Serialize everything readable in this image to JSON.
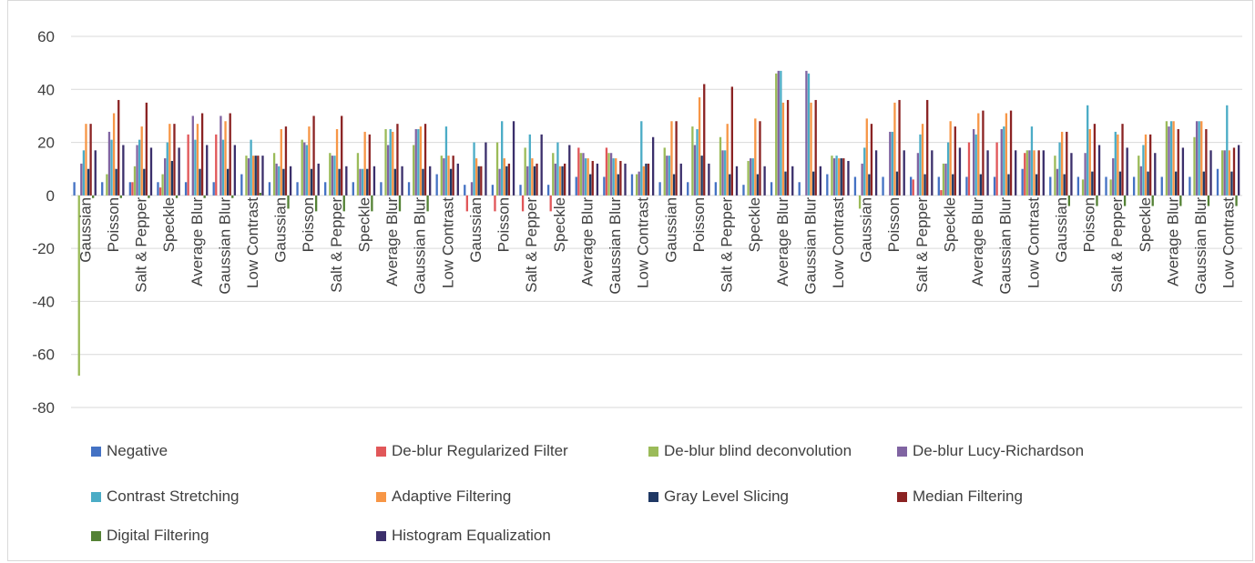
{
  "chart_data": {
    "type": "bar",
    "ylim": [
      -80,
      60
    ],
    "yticks": [
      60,
      40,
      20,
      0,
      -20,
      -40,
      -60,
      -80
    ],
    "grid": true,
    "legend_position": "bottom",
    "categories": [
      "Gaussian",
      "Poisson",
      "Salt & Pepper",
      "Speckle",
      "Average Blur",
      "Gaussian Blur",
      "Low Contrast",
      "Gaussian",
      "Poisson",
      "Salt & Pepper",
      "Speckle",
      "Average Blur",
      "Gaussian Blur",
      "Low Contrast",
      "Gaussian",
      "Poisson",
      "Salt & Pepper",
      "Speckle",
      "Average Blur",
      "Gaussian Blur",
      "Low Contrast",
      "Gaussian",
      "Poisson",
      "Salt & Pepper",
      "Speckle",
      "Average Blur",
      "Gaussian Blur",
      "Low Contrast",
      "Gaussian",
      "Poisson",
      "Salt & Pepper",
      "Speckle",
      "Average Blur",
      "Gaussian Blur",
      "Low Contrast",
      "Gaussian",
      "Poisson",
      "Salt & Pepper",
      "Speckle",
      "Average Blur",
      "Gaussian Blur",
      "Low Contrast"
    ],
    "series": [
      {
        "name": "Negative",
        "color": "#4472c4",
        "values": [
          5,
          5,
          5,
          5,
          5,
          5,
          8,
          5,
          5,
          5,
          5,
          5,
          5,
          8,
          4,
          4,
          4,
          4,
          7,
          7,
          8,
          5,
          5,
          5,
          4,
          5,
          5,
          8,
          7,
          7,
          7,
          7,
          7,
          7,
          10,
          7,
          7,
          7,
          7,
          7,
          7,
          10
        ]
      },
      {
        "name": "De-blur Regularized Filter",
        "color": "#e15759",
        "values": [
          0,
          0,
          5,
          3,
          23,
          23,
          0,
          0,
          0,
          0,
          0,
          0,
          0,
          0,
          -6,
          -6,
          -6,
          -6,
          18,
          18,
          0,
          0,
          0,
          0,
          0,
          0,
          0,
          0,
          0,
          0,
          6,
          2,
          20,
          20,
          16,
          0,
          0,
          0,
          0,
          0,
          0,
          0
        ]
      },
      {
        "name": "De-blur blind deconvolution",
        "color": "#9bbb59",
        "values": [
          -68,
          8,
          11,
          8,
          0,
          0,
          15,
          16,
          21,
          16,
          16,
          25,
          19,
          15,
          0,
          20,
          18,
          16,
          16,
          16,
          8,
          18,
          26,
          22,
          13,
          46,
          0,
          15,
          -5,
          0,
          0,
          12,
          0,
          0,
          17,
          15,
          6,
          6,
          15,
          28,
          22,
          17
        ]
      },
      {
        "name": "De-blur Lucy-Richardson",
        "color": "#8064a2",
        "values": [
          12,
          24,
          19,
          14,
          30,
          30,
          14,
          12,
          20,
          15,
          10,
          19,
          25,
          14,
          5,
          10,
          11,
          12,
          16,
          16,
          9,
          15,
          19,
          17,
          14,
          47,
          47,
          14,
          12,
          24,
          16,
          12,
          25,
          25,
          17,
          10,
          16,
          14,
          11,
          26,
          28,
          17
        ]
      },
      {
        "name": "Contrast Stretching",
        "color": "#4bacc6",
        "values": [
          17,
          21,
          21,
          20,
          21,
          21,
          21,
          11,
          19,
          15,
          10,
          25,
          25,
          26,
          20,
          28,
          23,
          20,
          14,
          14,
          28,
          15,
          25,
          17,
          14,
          47,
          46,
          15,
          18,
          24,
          23,
          20,
          23,
          26,
          26,
          20,
          34,
          24,
          19,
          28,
          28,
          34
        ]
      },
      {
        "name": "Adaptive Filtering",
        "color": "#f79646",
        "values": [
          27,
          31,
          26,
          27,
          27,
          28,
          15,
          25,
          26,
          25,
          24,
          24,
          26,
          15,
          14,
          14,
          14,
          11,
          14,
          14,
          11,
          28,
          37,
          27,
          29,
          35,
          35,
          14,
          29,
          35,
          27,
          28,
          31,
          31,
          17,
          24,
          25,
          23,
          23,
          28,
          28,
          17
        ]
      },
      {
        "name": "Gray Level Slicing",
        "color": "#1f3864",
        "values": [
          10,
          10,
          10,
          13,
          10,
          10,
          15,
          10,
          10,
          10,
          10,
          10,
          10,
          10,
          11,
          11,
          11,
          11,
          8,
          8,
          12,
          8,
          15,
          8,
          8,
          9,
          9,
          14,
          8,
          9,
          8,
          8,
          8,
          8,
          8,
          8,
          9,
          9,
          9,
          9,
          9,
          9
        ]
      },
      {
        "name": "Median Filtering",
        "color": "#8b2323",
        "values": [
          27,
          36,
          35,
          27,
          31,
          31,
          15,
          26,
          30,
          30,
          23,
          27,
          27,
          15,
          11,
          12,
          12,
          12,
          13,
          13,
          12,
          28,
          42,
          41,
          28,
          36,
          36,
          14,
          27,
          36,
          36,
          26,
          32,
          32,
          17,
          24,
          27,
          27,
          23,
          25,
          25,
          18
        ]
      },
      {
        "name": "Digital Filtering",
        "color": "#548235",
        "values": [
          -1,
          -1,
          -1,
          -1,
          -1,
          -1,
          1,
          -5,
          -6,
          -6,
          -6,
          -6,
          -6,
          0,
          0,
          0,
          0,
          0,
          0,
          0,
          0,
          0,
          0,
          0,
          0,
          0,
          0,
          0,
          0,
          0,
          0,
          0,
          0,
          0,
          0,
          -4,
          -4,
          -4,
          -4,
          -4,
          -4,
          -4
        ]
      },
      {
        "name": "Histogram Equalization",
        "color": "#3b2f6b",
        "values": [
          17,
          19,
          18,
          18,
          19,
          19,
          15,
          11,
          12,
          11,
          11,
          11,
          11,
          12,
          20,
          28,
          23,
          19,
          12,
          12,
          22,
          12,
          12,
          11,
          11,
          11,
          11,
          13,
          17,
          17,
          17,
          18,
          17,
          17,
          17,
          16,
          19,
          18,
          16,
          18,
          17,
          19
        ]
      }
    ]
  }
}
